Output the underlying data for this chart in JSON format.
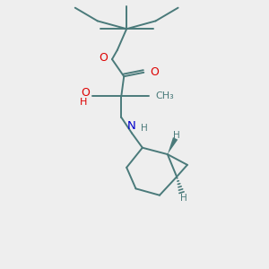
{
  "bg_color": "#eeeeee",
  "bond_color": "#4a7a7a",
  "bond_width": 1.4,
  "atom_colors": {
    "O": "#dd0000",
    "N": "#0000cc",
    "C": "#4a7a7a",
    "H": "#4a7a7a"
  },
  "font_size": 8.5,
  "fig_size": [
    3.0,
    3.0
  ],
  "dpi": 100
}
